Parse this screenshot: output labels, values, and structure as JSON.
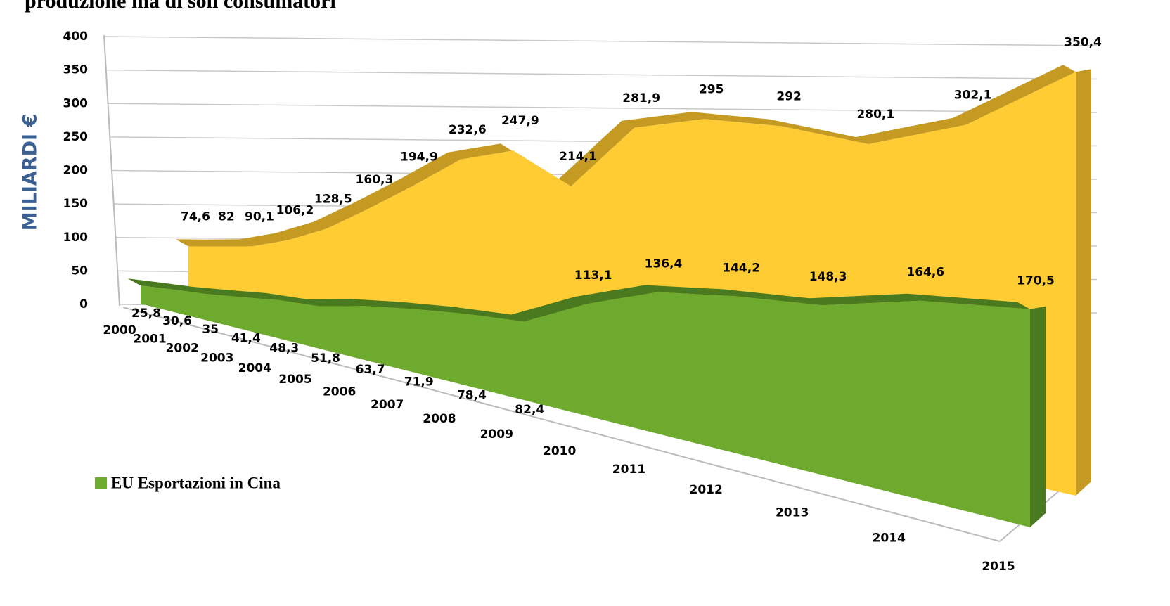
{
  "chart_data": {
    "type": "area3d",
    "title": "produzione ma di soli consumatori",
    "y_label": "MILIARDI €",
    "categories": [
      "2000",
      "2001",
      "2002",
      "2003",
      "2004",
      "2005",
      "2006",
      "2007",
      "2008",
      "2009",
      "2010",
      "2011",
      "2012",
      "2013",
      "2014",
      "2015"
    ],
    "series": [
      {
        "color": "#FFCC33",
        "values": [
          74.6,
          82,
          90.1,
          106.2,
          128.5,
          160.3,
          194.9,
          232.6,
          247.9,
          214.1,
          281.9,
          295,
          292,
          280.1,
          302.1,
          350.4
        ],
        "value_labels": [
          "74,6",
          "82",
          "90,1",
          "106,2",
          "128,5",
          "160,3",
          "194,9",
          "232,6",
          "247,9",
          "214,1",
          "281,9",
          "295",
          "292",
          "280,1",
          "302,1",
          "350,4"
        ]
      },
      {
        "name": "EU Esportazioni in Cina",
        "color": "#6EAA2E",
        "values": [
          25.8,
          30.6,
          35,
          41.4,
          48.3,
          51.8,
          63.7,
          71.9,
          78.4,
          82.4,
          113.1,
          136.4,
          144.2,
          148.3,
          164.6,
          170.5
        ],
        "value_labels": [
          "25,8",
          "30,6",
          "35",
          "41,4",
          "48,3",
          "51,8",
          "63,7",
          "71,9",
          "78,4",
          "82,4",
          "113,1",
          "136,4",
          "144,2",
          "148,3",
          "164,6",
          "170,5"
        ]
      }
    ],
    "ylim": [
      0,
      400
    ],
    "yticks": [
      0,
      50,
      100,
      150,
      200,
      250,
      300,
      350,
      400
    ],
    "grid": true
  }
}
